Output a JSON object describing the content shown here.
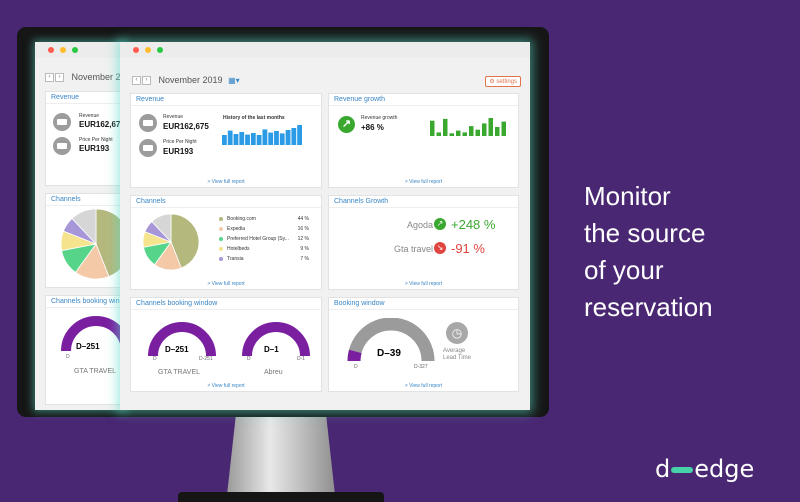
{
  "headline": {
    "line1": "Monitor",
    "line2": "the source",
    "line3": "of your",
    "line4": "reservation"
  },
  "logo": {
    "left": "d",
    "right": "edge"
  },
  "colors": {
    "accent": "#3a86c6",
    "purple": "#7a1fa0",
    "green": "#3aa82e",
    "red": "#e0443f"
  },
  "window": {
    "month": "November 2019",
    "back_month": "November 2",
    "settings_label": "settings"
  },
  "common": {
    "view_full_report": "> View full report"
  },
  "revenue": {
    "title": "Revenue",
    "revenue_label": "Revenue",
    "revenue_value": "EUR162,675",
    "back_revenue_value": "EUR162,67",
    "ppn_label": "Price Per Night",
    "ppn_value": "EUR193",
    "history_label": "History of the last months",
    "history_values": [
      0.5,
      0.72,
      0.55,
      0.65,
      0.52,
      0.6,
      0.5,
      0.78,
      0.62,
      0.7,
      0.58,
      0.75,
      0.85,
      1.0
    ]
  },
  "revenue_growth": {
    "title": "Revenue growth",
    "label": "Revenue growth",
    "value": "+86 %",
    "bars": [
      0.85,
      0.2,
      0.95,
      0.15,
      0.3,
      0.2,
      0.55,
      0.35,
      0.7,
      1.0,
      0.5,
      0.8
    ]
  },
  "channels": {
    "title": "Channels",
    "items": [
      {
        "name": "Booking.com",
        "pct": "44 %",
        "value": 44,
        "color": "#b5b87d"
      },
      {
        "name": "Expedia",
        "pct": "16 %",
        "value": 16,
        "color": "#f3c9a8"
      },
      {
        "name": "Preferred Hotel Group (Sy...",
        "pct": "12 %",
        "value": 12,
        "color": "#56d48a"
      },
      {
        "name": "Hotelbeds",
        "pct": "9 %",
        "value": 9,
        "color": "#f5e38e"
      },
      {
        "name": "Transia",
        "pct": "7 %",
        "value": 7,
        "color": "#a796d8"
      },
      {
        "name": "",
        "pct": "",
        "value": 12,
        "color": "#d6d6d6"
      }
    ]
  },
  "channels_growth": {
    "title": "Channels Growth",
    "rows": [
      {
        "name": "Agoda",
        "value": "+248 %",
        "dir": "up"
      },
      {
        "name": "Gta travel",
        "value": "-91 %",
        "dir": "down"
      }
    ]
  },
  "booking_window_channels": {
    "title": "Channels booking window",
    "back_title": "Channels booking windo",
    "gauges": [
      {
        "value": "D–251",
        "left": "D",
        "right": "D-251",
        "name": "GTA TRAVEL",
        "fill": 1.0
      },
      {
        "value": "D–1",
        "left": "D",
        "right": "D-1",
        "name": "Abreu",
        "fill": 1.0
      }
    ]
  },
  "booking_window": {
    "title": "Booking window",
    "value": "D–39",
    "left": "D",
    "right": "D-327",
    "fill": 0.12,
    "avg_label": "Average Lead Time"
  }
}
